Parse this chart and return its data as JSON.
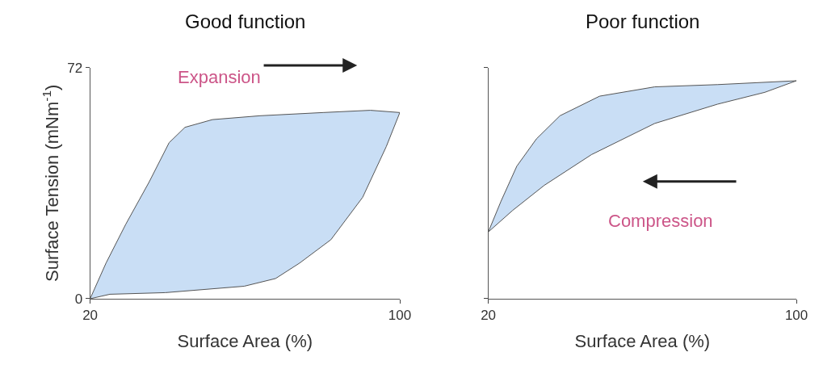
{
  "chart_data": [
    {
      "type": "area",
      "title": "Good function",
      "xlabel": "Surface Area (%)",
      "ylabel": "Surface Tension (mNm$^{-1}$)",
      "xlim": [
        20,
        100
      ],
      "xticks": [
        20,
        100
      ],
      "ylim": [
        0,
        72
      ],
      "yticks": [
        0,
        72
      ],
      "annotations": [
        "Expansion"
      ],
      "series": [
        {
          "color": "#c9def5",
          "x": [
            20,
            24.1,
            29.2,
            35.3,
            40.4,
            44.5,
            51.6,
            63.9,
            80.2,
            92.4,
            100,
            96.5,
            90.4,
            82.2,
            74.1,
            67.9,
            59.8,
            39.4,
            25.1,
            20
          ],
          "values": [
            0,
            11.1,
            23.2,
            36.5,
            48.6,
            53.4,
            55.8,
            57.0,
            58.0,
            58.7,
            58.0,
            47.4,
            31.6,
            18.4,
            11.1,
            6.3,
            3.9,
            1.9,
            1.4,
            0
          ]
        }
      ]
    },
    {
      "type": "area",
      "title": "Poor function",
      "xlabel": "Surface Area (%)",
      "xlim": [
        20,
        100
      ],
      "xticks": [
        20,
        100
      ],
      "ylim": [
        0,
        72
      ],
      "yticks": [
        0,
        72
      ],
      "tick_labels": "x",
      "annotations": [
        "Compression"
      ],
      "series": [
        {
          "color": "#c9def5",
          "x": [
            20,
            23.3,
            27.4,
            32.5,
            38.6,
            48.9,
            63.2,
            79.5,
            100,
            91.8,
            79.5,
            63.2,
            46.8,
            34.5,
            26.3,
            20
          ],
          "values": [
            20.8,
            30.4,
            41.3,
            49.8,
            57.0,
            63.1,
            66.0,
            66.7,
            67.9,
            64.3,
            60.6,
            54.6,
            44.9,
            35.3,
            27.5,
            20.8
          ]
        }
      ]
    }
  ]
}
